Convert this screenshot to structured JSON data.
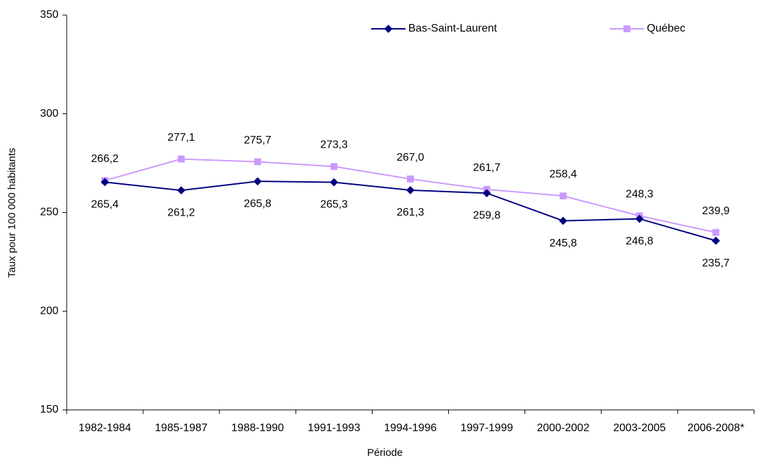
{
  "chart_data": {
    "type": "line",
    "x_label": "Période",
    "y_label": "Taux pour 100 000 habitants",
    "categories": [
      "1982-1984",
      "1985-1987",
      "1988-1990",
      "1991-1993",
      "1994-1996",
      "1997-1999",
      "2000-2002",
      "2003-2005",
      "2006-2008*"
    ],
    "series": [
      {
        "name": "Bas-Saint-Laurent",
        "color": "#000080",
        "marker": "diamond",
        "label_side": "below",
        "values": [
          265.4,
          261.2,
          265.8,
          265.3,
          261.3,
          259.8,
          245.8,
          246.8,
          235.7
        ],
        "value_labels": [
          "265,4",
          "261,2",
          "265,8",
          "265,3",
          "261,3",
          "259,8",
          "245,8",
          "246,8",
          "235,7"
        ]
      },
      {
        "name": "Québec",
        "color": "#cc99ff",
        "marker": "square",
        "label_side": "above",
        "values": [
          266.2,
          277.1,
          275.7,
          273.3,
          267.0,
          261.7,
          258.4,
          248.3,
          239.9
        ],
        "value_labels": [
          "266,2",
          "277,1",
          "275,7",
          "273,3",
          "267,0",
          "261,7",
          "258,4",
          "248,3",
          "239,9"
        ]
      }
    ],
    "ylim": [
      150,
      350
    ],
    "yticks": [
      150,
      200,
      250,
      300,
      350
    ],
    "grid": false,
    "legend": "top"
  }
}
